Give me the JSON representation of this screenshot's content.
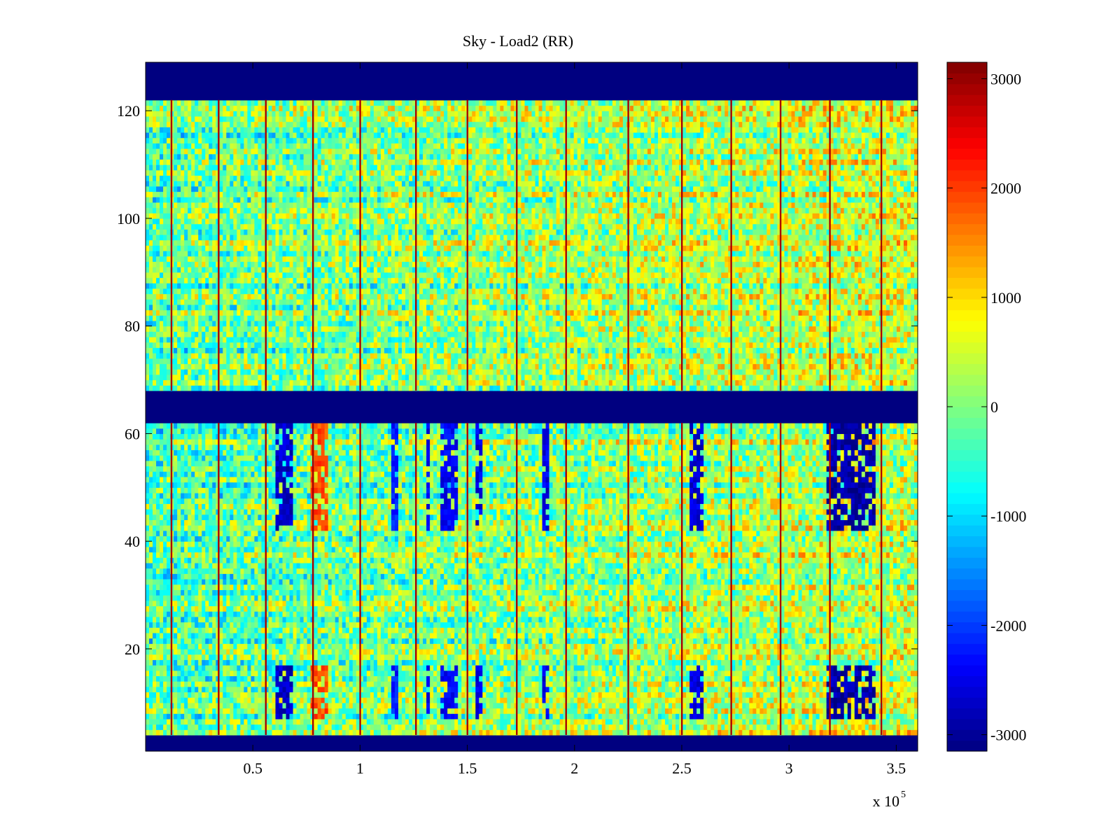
{
  "chart_data": {
    "type": "heatmap",
    "title": "Sky - Load2 (RR)",
    "xlabel": "",
    "ylabel": "",
    "x_multiplier_label": {
      "base": "x 10",
      "exponent": "5"
    },
    "xlim": [
      0,
      3.6
    ],
    "ylim": [
      1,
      129
    ],
    "xticks": [
      0.5,
      1,
      1.5,
      2,
      2.5,
      3,
      3.5
    ],
    "xtick_labels": [
      "0.5",
      "1",
      "1.5",
      "2",
      "2.5",
      "3",
      "3.5"
    ],
    "yticks": [
      20,
      40,
      60,
      80,
      100,
      120
    ],
    "ytick_labels": [
      "20",
      "40",
      "60",
      "80",
      "100",
      "120"
    ],
    "colorbar": {
      "range": [
        -3150,
        3150
      ],
      "ticks": [
        -3000,
        -2000,
        -1000,
        0,
        1000,
        2000,
        3000
      ],
      "tick_labels": [
        "-3000",
        "-2000",
        "-1000",
        "0",
        "1000",
        "2000",
        "3000"
      ],
      "colormap": "jet"
    },
    "masked_rows": [
      [
        1,
        4
      ],
      [
        62,
        68
      ],
      [
        122,
        129
      ]
    ],
    "masked_value": -3150,
    "spike_columns_x": [
      0.12,
      0.34,
      0.56,
      0.78,
      1.0,
      1.26,
      1.5,
      1.73,
      1.96,
      2.25,
      2.5,
      2.73,
      2.96,
      3.19,
      3.43
    ],
    "spike_value": 2900,
    "dropout_bands_lower": [
      {
        "x_start": 0.61,
        "x_end": 0.68,
        "value": -2700
      },
      {
        "x_start": 0.77,
        "x_end": 0.84,
        "value": 1900
      },
      {
        "x_start": 1.15,
        "x_end": 1.17,
        "value": -2200
      },
      {
        "x_start": 1.31,
        "x_end": 1.32,
        "value": -2400
      },
      {
        "x_start": 1.39,
        "x_end": 1.41,
        "value": -2400
      },
      {
        "x_start": 1.43,
        "x_end": 1.45,
        "value": -2400
      },
      {
        "x_start": 1.54,
        "x_end": 1.56,
        "value": -2500
      },
      {
        "x_start": 1.85,
        "x_end": 1.88,
        "value": -2500
      },
      {
        "x_start": 2.55,
        "x_end": 2.59,
        "value": -2600
      },
      {
        "x_start": 3.18,
        "x_end": 3.4,
        "value": -2900
      }
    ],
    "lower_region_mean": -300,
    "upper_region_mean": -200,
    "trend_note_right_side_mean": 700
  }
}
